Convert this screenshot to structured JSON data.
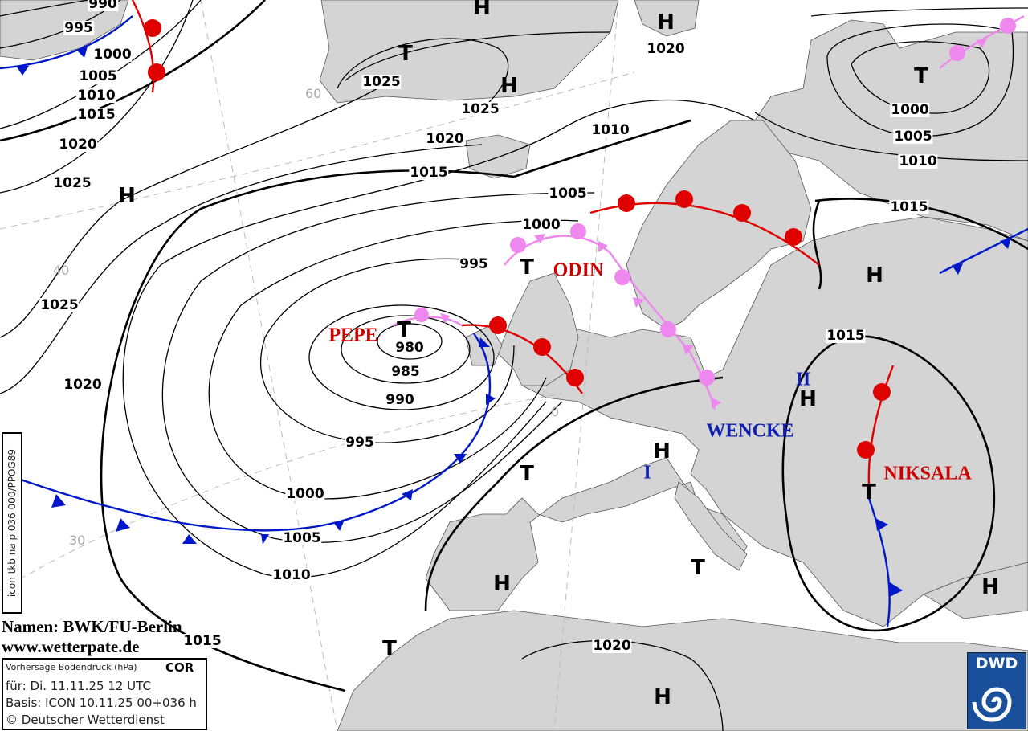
{
  "isobar_labels": [
    "990",
    "995",
    "1000",
    "1005",
    "1010",
    "1015",
    "1020",
    "1025",
    "1025",
    "1025",
    "1020",
    "1015",
    "1010",
    "1020",
    "1005",
    "1000",
    "995",
    "980",
    "985",
    "990",
    "995",
    "1000",
    "1005",
    "1010",
    "1015",
    "1020",
    "1025",
    "1000",
    "1005",
    "1010",
    "1015",
    "1015",
    "1020"
  ],
  "pressure_centers": [
    "H",
    "T",
    "H",
    "H",
    "T",
    "H",
    "T",
    "T",
    "H",
    "H",
    "H",
    "T",
    "T",
    "H",
    "T",
    "H",
    "T",
    "H"
  ],
  "system_names": {
    "pepe": "PEPE",
    "odin": "ODIN",
    "wencke": "WENCKE",
    "niksala": "NIKSALA",
    "zone_1": "I",
    "zone_2": "II"
  },
  "credits": {
    "names": "Namen: BWK/FU-Berlin",
    "website": "www.wetterpate.de"
  },
  "info": {
    "title": "Vorhersage Bodendruck (hPa)",
    "flag": "COR",
    "valid": "für:  Di. 11.11.25  12 UTC",
    "basis": "Basis: ICON  10.11.25 00+036 h",
    "copyright": "© Deutscher Wetterdienst"
  },
  "product_code": "icon tkb na p 036 000/PPOG89",
  "logo": "DWD",
  "grid_labels": [
    "60",
    "40",
    "30",
    "0"
  ],
  "colors": {
    "land": "#d4d4d4",
    "sea": "#ffffff",
    "warm_front": "#e00000",
    "cold_front": "#0018c8",
    "occlusion": "#ee88ee",
    "names_red": "#cc0000",
    "names_blue": "#1020b0"
  }
}
